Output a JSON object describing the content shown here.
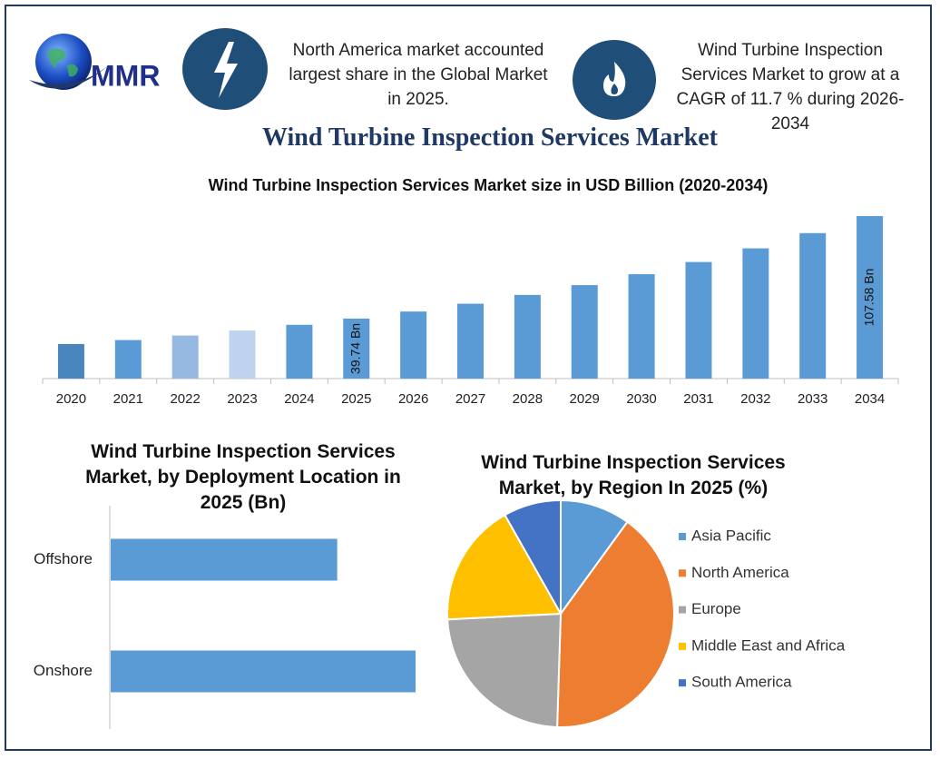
{
  "header": {
    "logo_text": "MMR",
    "left_note": "North America market accounted largest share in the Global Market in 2025.",
    "right_note": "Wind Turbine Inspection Services Market to grow at a CAGR of 11.7 % during 2026-2034",
    "title": "Wind Turbine Inspection Services Market"
  },
  "chart_data": [
    {
      "type": "bar",
      "title": "Wind Turbine Inspection Services Market size in USD Billion (2020-2034)",
      "categories": [
        "2020",
        "2021",
        "2022",
        "2023",
        "2024",
        "2025",
        "2026",
        "2027",
        "2028",
        "2029",
        "2030",
        "2031",
        "2032",
        "2033",
        "2034"
      ],
      "values": [
        22.9,
        25.5,
        28.5,
        31.9,
        35.6,
        39.74,
        44.39,
        49.58,
        55.38,
        61.86,
        69.1,
        77.18,
        86.21,
        96.3,
        107.58
      ],
      "value_labels": [
        null,
        null,
        null,
        null,
        null,
        "39.74 Bn",
        null,
        null,
        null,
        null,
        null,
        null,
        null,
        null,
        "107.58 Bn"
      ],
      "colors": [
        "#4a86be",
        "#5b9bd5",
        "#95b9e0",
        "#bdd3ee",
        "#5b9bd5",
        "#5b9bd5",
        "#5b9bd5",
        "#5b9bd5",
        "#5b9bd5",
        "#5b9bd5",
        "#5b9bd5",
        "#5b9bd5",
        "#5b9bd5",
        "#5b9bd5",
        "#5b9bd5"
      ]
    },
    {
      "type": "hbar",
      "title": "Wind Turbine Inspection Services Market, by Deployment Location in 2025 (Bn)",
      "categories": [
        "Offshore",
        "Onshore"
      ],
      "values": [
        16.94,
        22.8
      ],
      "color": "#5b9bd5"
    },
    {
      "type": "pie",
      "title": "Wind Turbine Inspection Services Market, by Region In 2025 (%)",
      "categories": [
        "Asia Pacific",
        "North America",
        "Europe",
        "Middle East and Africa",
        "South America"
      ],
      "values": [
        10,
        40.5,
        23.7,
        17.6,
        8.2
      ],
      "colors": [
        "#5b9bd5",
        "#ed7d31",
        "#a5a5a5",
        "#ffc000",
        "#4472c4"
      ]
    }
  ]
}
